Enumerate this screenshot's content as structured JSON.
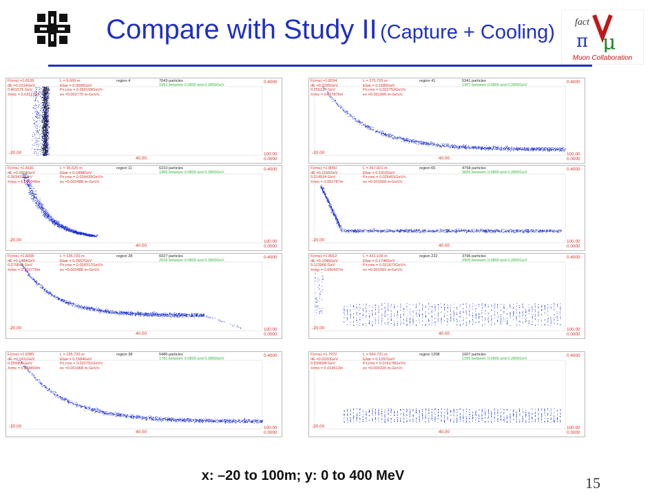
{
  "slide": {
    "title": "Compare with Study II",
    "subtitle": "(Capture + Cooling)",
    "caption": "x:   –20 to 100m;  y: 0 to 400 MeV",
    "page_number": "15",
    "logo_right_text": "Muon Collaboration",
    "colors": {
      "title": "#1f2fc2",
      "particles": "#1c2fd0",
      "particles_dense": "#101020",
      "header_red": "#d4302a",
      "header_green": "#31b63a"
    }
  },
  "chart_data": [
    {
      "type": "scatter",
      "region": "4",
      "particles": "7043 particles",
      "inband": "1991 between 0.0800 and 0.2800GeV",
      "header_left": [
        "F(rms) =1.8139",
        "dE =0.2214GeV",
        "0.401576  GeV",
        "Xrms = 0.031116m"
      ],
      "header_mid": [
        "L =   9.600  m",
        "Ebar = 0.3090GeV",
        "Px,rms = 0.069199GeV/c",
        "ex =0.002775  m-GeV/c"
      ],
      "xlim": [
        -20,
        100
      ],
      "ylim": [
        0,
        0.4
      ],
      "xticks": [
        "-20.00",
        "40.00",
        "100.00"
      ],
      "yticks": [
        "0.4000",
        "0.0000"
      ],
      "shape": "spike"
    },
    {
      "type": "scatter",
      "region": "41",
      "particles": "5341 particles",
      "inband": "1367 between 0.0800 and 0.2800GeV",
      "header_left": [
        "F(rms) =1.8294",
        "dE =0.2295GeV",
        "0.255137  GeV",
        "Xrms = 0.067876m"
      ],
      "header_mid": [
        "L =  275.720  m",
        "Ebar = 0.1580GeV",
        "Px,rms = 0.022752GeV/c",
        "ex =0.001999  m-GeV/c"
      ],
      "xlim": [
        -20,
        100
      ],
      "ylim": [
        0,
        0.4
      ],
      "xticks": [
        "-20.00",
        "40.00",
        "100.00"
      ],
      "yticks": [
        "0.4000",
        "0.0000"
      ],
      "shape": "decay",
      "plateau": 0.035,
      "curve_end": 100
    },
    {
      "type": "scatter",
      "region": "11",
      "particles": "6210 particles",
      "inband": "1966 between 0.0800 and 0.2800GeV",
      "header_left": [
        "F(rms) =1.8181",
        "dE =0.2604GeV",
        "0.363429  GeV",
        "Xrms = 0.101049m"
      ],
      "header_mid": [
        "L =  35.620  m",
        "Ebar = 0.2498GeV",
        "Px,rms = 0.024439GeV/c",
        "ex =0.002488  m-GeV/c"
      ],
      "xlim": [
        -20,
        100
      ],
      "ylim": [
        0,
        0.4
      ],
      "xticks": [
        "-20.00",
        "40.00",
        "100.00"
      ],
      "yticks": [
        "0.4000",
        "0.0000"
      ],
      "shape": "hook"
    },
    {
      "type": "scatter",
      "region": "65",
      "particles": "4758 particles",
      "inband": "3665 between 0.0800 and 0.2800GeV",
      "header_left": [
        "F(rms) =1.8050",
        "dE =0.1166GeV",
        "0.214534  GeV",
        "Xrms = 0.061787m"
      ],
      "header_mid": [
        "L =  367.821  m",
        "Ebar = 0.1910GeV",
        "Px,rms = 0.025401GeV/c",
        "ex =0.001569  m-GeV/c"
      ],
      "xlim": [
        -20,
        100
      ],
      "ylim": [
        0,
        0.4
      ],
      "xticks": [
        "-20.00",
        "40.00",
        "100.00"
      ],
      "yticks": [
        "0.4000",
        "0.0000"
      ],
      "shape": "step"
    },
    {
      "type": "scatter",
      "region": "28",
      "particles": "6027 particles",
      "inband": "2626 between 0.0800 and 0.2800GeV",
      "header_left": [
        "F(rms) =1.8208",
        "dE =0.1484GeV",
        "0.270645  GeV",
        "Xrms = 0.102779m"
      ],
      "header_mid": [
        "L =  135.720  m",
        "Ebar = 0.2667GeV",
        "Px,rms = 0.024317GeV/c",
        "ex =0.002486  m-GeV/c"
      ],
      "xlim": [
        -20,
        100
      ],
      "ylim": [
        0,
        0.4
      ],
      "xticks": [
        "-20.00",
        "40.00",
        "100.00"
      ],
      "yticks": [
        "0.4000",
        "0.0000"
      ],
      "shape": "decay",
      "plateau": 0.09,
      "curve_end": 72
    },
    {
      "type": "scatter",
      "region": "222",
      "particles": "3796 particles",
      "inband": "2905 between 0.0800 and 0.2800GeV",
      "header_left": [
        "F(rms) =1.8912",
        "dE =0.1046GeV",
        "0.113968  GeV",
        "Xrms = 0.050437m"
      ],
      "header_mid": [
        "L =  431.106  m",
        "Ebar = 0.1746GeV",
        "Px,rms = 0.021672GeV/c",
        "ex =0.001091  m-GeV/c"
      ],
      "xlim": [
        -20,
        100
      ],
      "ylim": [
        0,
        0.4
      ],
      "xticks": [
        "-20.00",
        "40.00",
        "100.00"
      ],
      "yticks": [
        "0.4000",
        "0.0000"
      ],
      "shape": "bunched",
      "bunch_y": [
        0.03,
        0.16
      ]
    },
    {
      "type": "scatter",
      "region": "38",
      "particles": "5486 particles",
      "inband": "1781 between 0.0800 and 0.2800GeV",
      "header_left": [
        "F(rms) =1.6385",
        "dE =0.1411GeV",
        "0.259499  GeV",
        "Xrms = 0.084893m"
      ],
      "header_mid": [
        "L =  155.720  m",
        "Ebar = 0.1584GeV",
        "Px,rms = 0.022791GeV/c",
        "ex =0.001968  m-GeV/c"
      ],
      "xlim": [
        -20,
        100
      ],
      "ylim": [
        0,
        0.4
      ],
      "xticks": [
        "-20.00",
        "40.00",
        "100.00"
      ],
      "yticks": [
        "0.4000",
        "0.0000"
      ],
      "shape": "decay",
      "plateau": 0.045,
      "curve_end": 100
    },
    {
      "type": "scatter",
      "region": "1208",
      "particles": "1607 particles",
      "inband": "1595 between 0.0800 and 0.2800GeV",
      "header_left": [
        "F(rms) =1.7972",
        "dE =0.0220GeV",
        "0.039608  GeV",
        "Xrms = 0.013613m"
      ],
      "header_mid": [
        "L =  564.731  m",
        "Ebar = 0.1297GeV",
        "Px,rms = 0.016178GeV/c",
        "ex =0.000220  m-GeV/c"
      ],
      "xlim": [
        -20,
        100
      ],
      "ylim": [
        0,
        0.4
      ],
      "xticks": [
        "-20.00",
        "40.00",
        "100.00"
      ],
      "yticks": [
        "0.4000",
        "0.0000"
      ],
      "shape": "bunched",
      "bunch_y": [
        0.04,
        0.12
      ]
    }
  ]
}
